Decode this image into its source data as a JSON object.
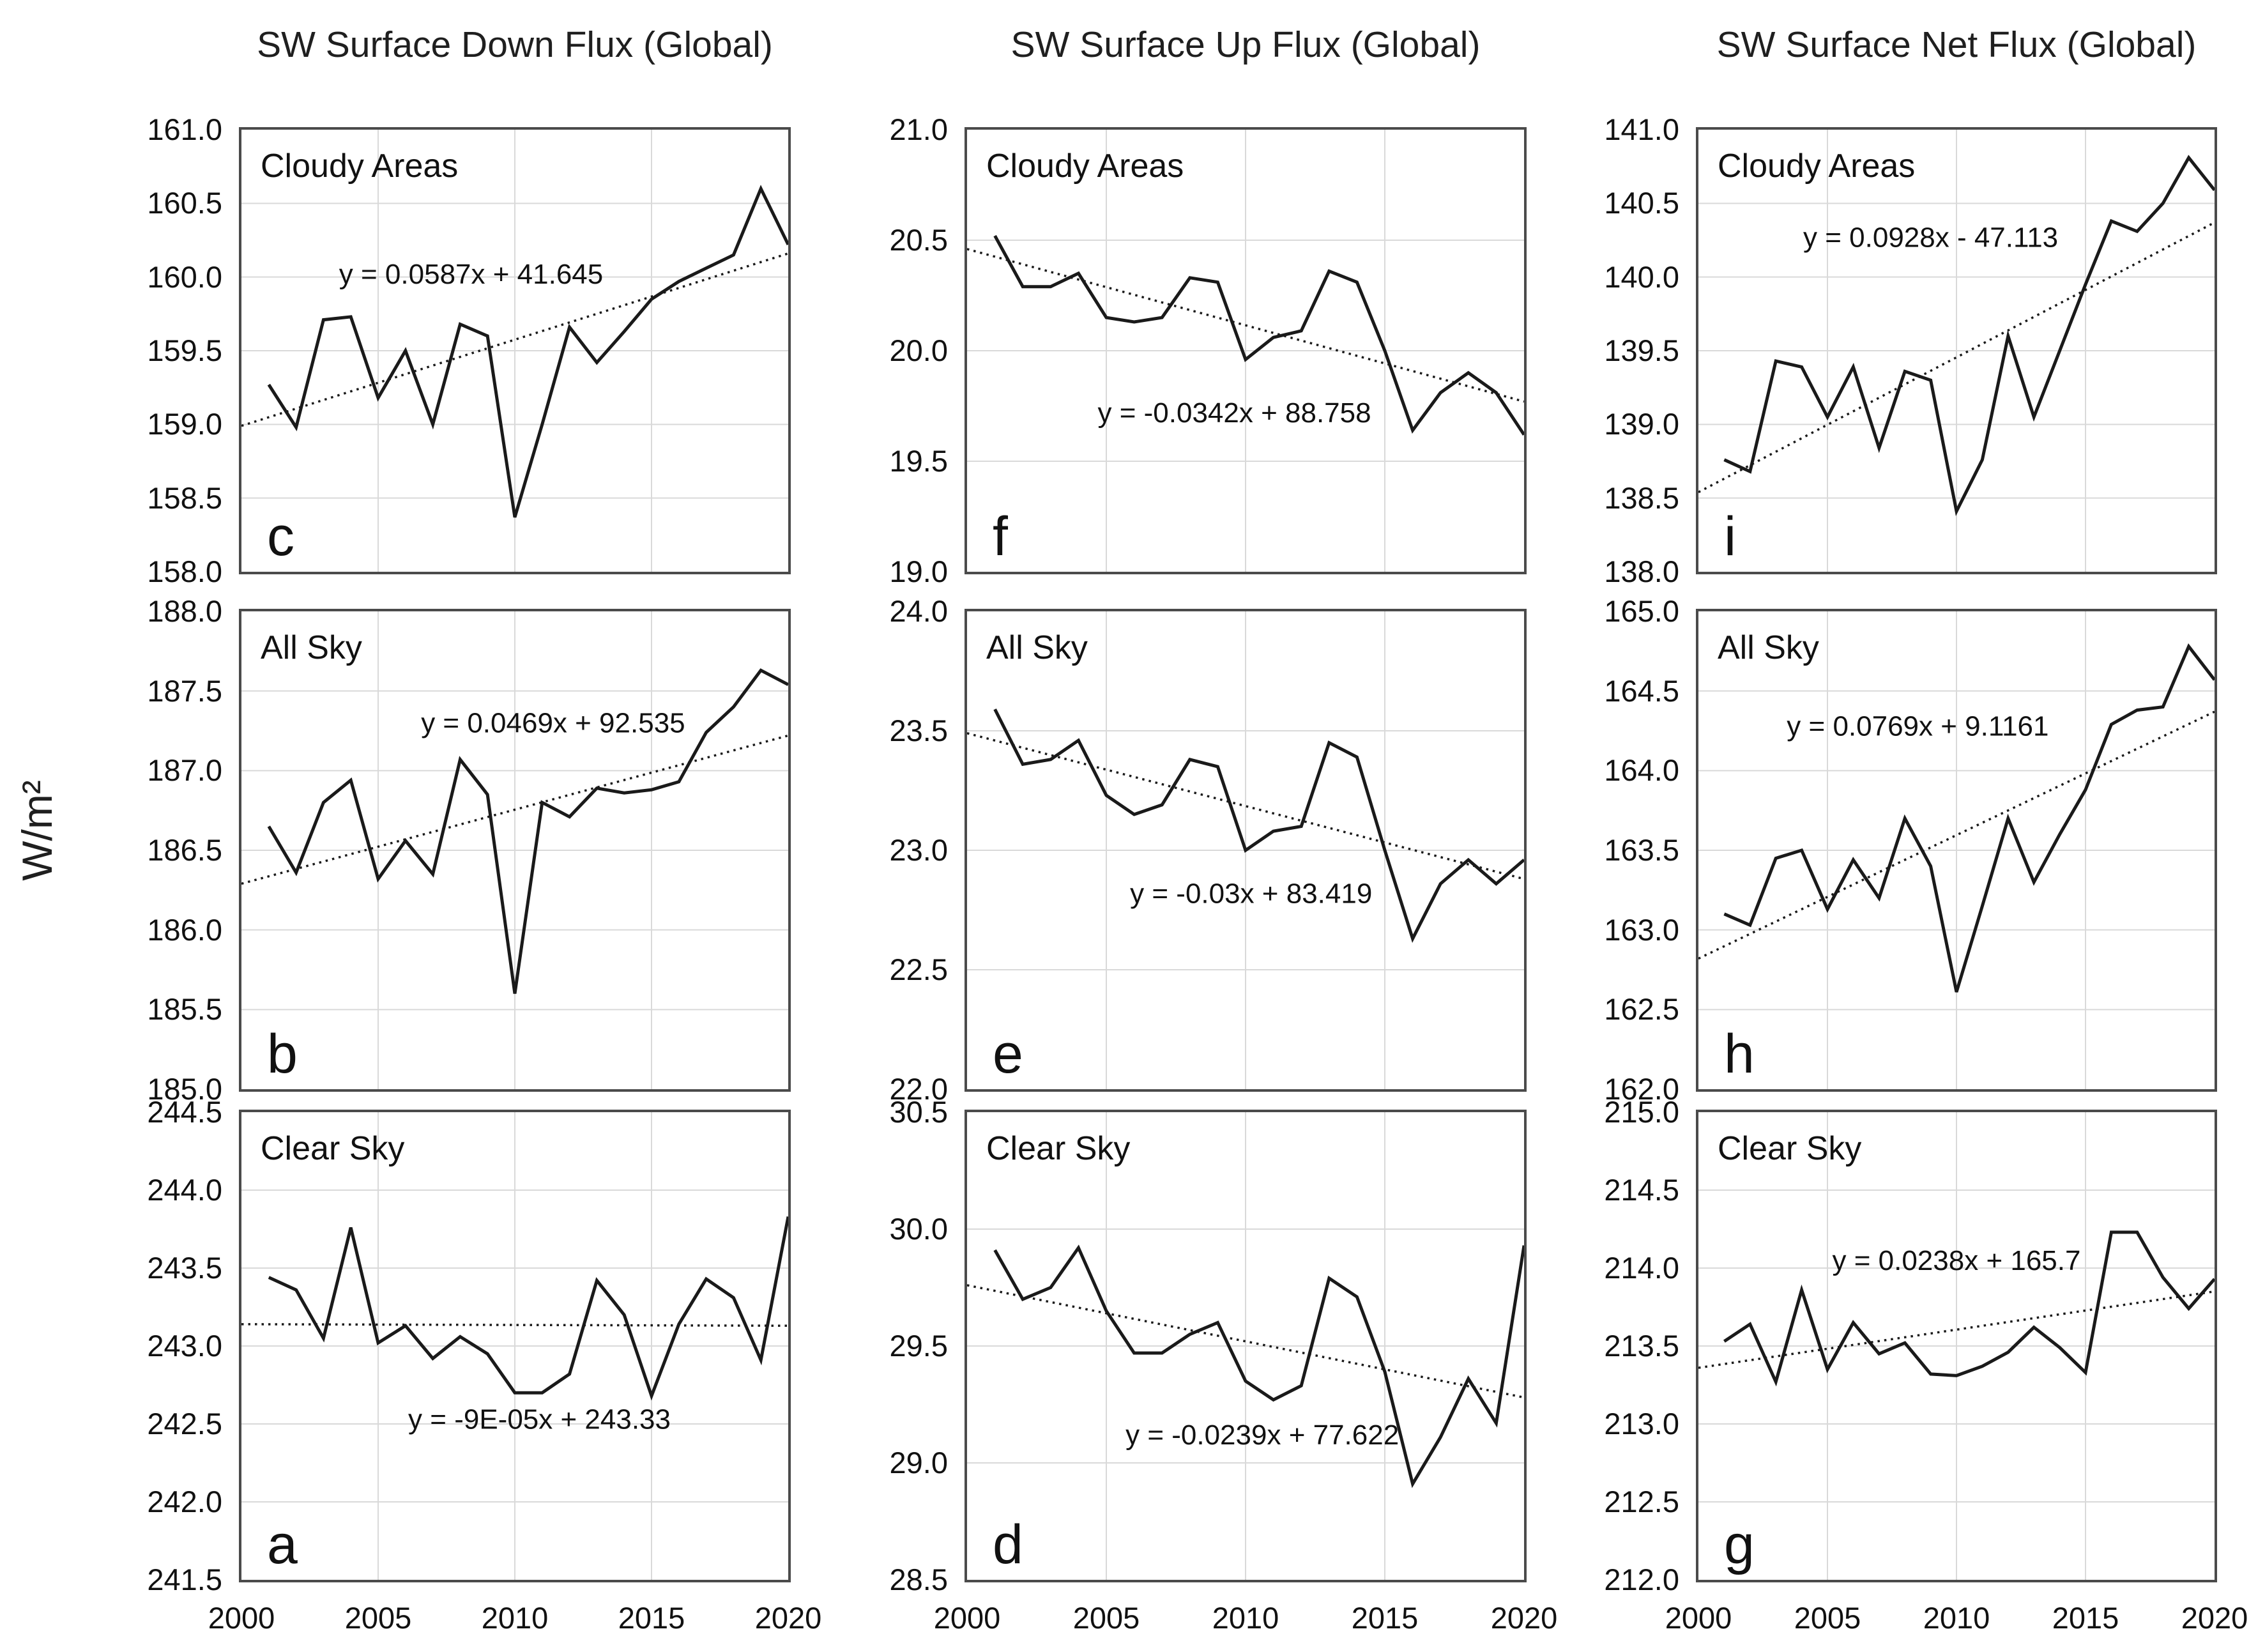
{
  "figure": {
    "ylabel": "W/m²",
    "column_titles": [
      "SW Surface Down Flux (Global)",
      "SW Surface Up Flux (Global)",
      "SW Surface Net Flux (Global)"
    ],
    "colors": {
      "background": "#ffffff",
      "series_line": "#1a1a1a",
      "trend_line": "#1a1a1a",
      "gridline": "#d9d9d9",
      "panel_border": "#4b4b4b",
      "text": "#111111"
    }
  },
  "x_axis": {
    "range": [
      2000,
      2020
    ],
    "tick_labels": [
      2000,
      2005,
      2010,
      2015,
      2020
    ],
    "gridline_years": [
      2005,
      2010,
      2015
    ]
  },
  "chart_data": [
    {
      "id": "c",
      "type": "line",
      "row": 0,
      "col": 0,
      "column_title": "SW Surface Down Flux (Global)",
      "sublabel": "Cloudy Areas",
      "corner_label": "c",
      "equation": "y = 0.0587x + 41.645",
      "equation_anchor": {
        "x_frac": 0.42,
        "y_value": 160.02
      },
      "ylim": [
        158.0,
        161.0
      ],
      "yticks": [
        158.0,
        158.5,
        159.0,
        159.5,
        160.0,
        160.5,
        161.0
      ],
      "x": [
        2001,
        2002,
        2003,
        2004,
        2005,
        2006,
        2007,
        2008,
        2009,
        2010,
        2011,
        2012,
        2013,
        2014,
        2015,
        2016,
        2017,
        2018,
        2019,
        2020
      ],
      "values": [
        159.27,
        158.98,
        159.71,
        159.73,
        159.18,
        159.5,
        159.0,
        159.68,
        159.6,
        158.37,
        159.0,
        159.66,
        159.42,
        159.63,
        159.85,
        159.97,
        160.06,
        160.15,
        160.6,
        160.22
      ],
      "trend_line": {
        "x": [
          2000,
          2020
        ],
        "y": [
          158.99,
          160.16
        ]
      }
    },
    {
      "id": "f",
      "type": "line",
      "row": 0,
      "col": 1,
      "column_title": "SW Surface Up Flux (Global)",
      "sublabel": "Cloudy Areas",
      "corner_label": "f",
      "equation": "y = -0.0342x + 88.758",
      "equation_anchor": {
        "x_frac": 0.48,
        "y_value": 19.72
      },
      "ylim": [
        19.0,
        21.0
      ],
      "yticks": [
        19.0,
        19.5,
        20.0,
        20.5,
        21.0
      ],
      "x": [
        2001,
        2002,
        2003,
        2004,
        2005,
        2006,
        2007,
        2008,
        2009,
        2010,
        2011,
        2012,
        2013,
        2014,
        2015,
        2016,
        2017,
        2018,
        2019,
        2020
      ],
      "values": [
        20.52,
        20.29,
        20.29,
        20.35,
        20.15,
        20.13,
        20.15,
        20.33,
        20.31,
        19.96,
        20.06,
        20.09,
        20.36,
        20.31,
        20.0,
        19.64,
        19.81,
        19.9,
        19.81,
        19.62
      ],
      "trend_line": {
        "x": [
          2000,
          2020
        ],
        "y": [
          20.46,
          19.77
        ]
      }
    },
    {
      "id": "i",
      "type": "line",
      "row": 0,
      "col": 2,
      "column_title": "SW Surface Net Flux (Global)",
      "sublabel": "Cloudy Areas",
      "corner_label": "i",
      "equation": "y = 0.0928x - 47.113",
      "equation_anchor": {
        "x_frac": 0.45,
        "y_value": 140.27
      },
      "ylim": [
        138.0,
        141.0
      ],
      "yticks": [
        138.0,
        138.5,
        139.0,
        139.5,
        140.0,
        140.5,
        141.0
      ],
      "x": [
        2001,
        2002,
        2003,
        2004,
        2005,
        2006,
        2007,
        2008,
        2009,
        2010,
        2011,
        2012,
        2013,
        2014,
        2015,
        2016,
        2017,
        2018,
        2019,
        2020
      ],
      "values": [
        138.76,
        138.68,
        139.43,
        139.39,
        139.05,
        139.39,
        138.84,
        139.36,
        139.3,
        138.41,
        138.76,
        139.6,
        139.05,
        139.5,
        139.95,
        140.38,
        140.31,
        140.5,
        140.81,
        140.59
      ],
      "trend_line": {
        "x": [
          2000,
          2020
        ],
        "y": [
          138.54,
          140.37
        ]
      }
    },
    {
      "id": "b",
      "type": "line",
      "row": 1,
      "col": 0,
      "column_title": "SW Surface Down Flux (Global)",
      "sublabel": "All Sky",
      "corner_label": "b",
      "equation": "y = 0.0469x + 92.535",
      "equation_anchor": {
        "x_frac": 0.57,
        "y_value": 187.3
      },
      "ylim": [
        185.0,
        188.0
      ],
      "yticks": [
        185.0,
        185.5,
        186.0,
        186.5,
        187.0,
        187.5,
        188.0
      ],
      "x": [
        2001,
        2002,
        2003,
        2004,
        2005,
        2006,
        2007,
        2008,
        2009,
        2010,
        2011,
        2012,
        2013,
        2014,
        2015,
        2016,
        2017,
        2018,
        2019,
        2020
      ],
      "values": [
        186.65,
        186.36,
        186.8,
        186.94,
        186.32,
        186.56,
        186.35,
        187.07,
        186.85,
        185.6,
        186.8,
        186.71,
        186.89,
        186.86,
        186.88,
        186.93,
        187.24,
        187.4,
        187.63,
        187.54
      ],
      "trend_line": {
        "x": [
          2000,
          2020
        ],
        "y": [
          186.29,
          187.22
        ]
      }
    },
    {
      "id": "e",
      "type": "line",
      "row": 1,
      "col": 1,
      "column_title": "SW Surface Up Flux (Global)",
      "sublabel": "All Sky",
      "corner_label": "e",
      "equation": "y = -0.03x + 83.419",
      "equation_anchor": {
        "x_frac": 0.51,
        "y_value": 22.82
      },
      "ylim": [
        22.0,
        24.0
      ],
      "yticks": [
        22.0,
        22.5,
        23.0,
        23.5,
        24.0
      ],
      "x": [
        2001,
        2002,
        2003,
        2004,
        2005,
        2006,
        2007,
        2008,
        2009,
        2010,
        2011,
        2012,
        2013,
        2014,
        2015,
        2016,
        2017,
        2018,
        2019,
        2020
      ],
      "values": [
        23.59,
        23.36,
        23.38,
        23.46,
        23.23,
        23.15,
        23.19,
        23.38,
        23.35,
        23.0,
        23.08,
        23.1,
        23.45,
        23.39,
        23.0,
        22.63,
        22.86,
        22.96,
        22.86,
        22.96
      ],
      "trend_line": {
        "x": [
          2000,
          2020
        ],
        "y": [
          23.49,
          22.88
        ]
      }
    },
    {
      "id": "h",
      "type": "line",
      "row": 1,
      "col": 2,
      "column_title": "SW Surface Net Flux (Global)",
      "sublabel": "All Sky",
      "corner_label": "h",
      "equation": "y = 0.0769x + 9.1161",
      "equation_anchor": {
        "x_frac": 0.425,
        "y_value": 164.28
      },
      "ylim": [
        162.0,
        165.0
      ],
      "yticks": [
        162.0,
        162.5,
        163.0,
        163.5,
        164.0,
        164.5,
        165.0
      ],
      "x": [
        2001,
        2002,
        2003,
        2004,
        2005,
        2006,
        2007,
        2008,
        2009,
        2010,
        2011,
        2012,
        2013,
        2014,
        2015,
        2016,
        2017,
        2018,
        2019,
        2020
      ],
      "values": [
        163.1,
        163.03,
        163.45,
        163.5,
        163.13,
        163.44,
        163.2,
        163.7,
        163.4,
        162.61,
        163.15,
        163.7,
        163.3,
        163.6,
        163.88,
        164.29,
        164.38,
        164.4,
        164.78,
        164.57
      ],
      "trend_line": {
        "x": [
          2000,
          2020
        ],
        "y": [
          162.82,
          164.37
        ]
      }
    },
    {
      "id": "a",
      "type": "line",
      "row": 2,
      "col": 0,
      "column_title": "SW Surface Down Flux (Global)",
      "sublabel": "Clear Sky",
      "corner_label": "a",
      "equation": "y = -9E-05x + 243.33",
      "equation_anchor": {
        "x_frac": 0.545,
        "y_value": 242.53
      },
      "ylim": [
        241.5,
        244.5
      ],
      "yticks": [
        241.5,
        242.0,
        242.5,
        243.0,
        243.5,
        244.0,
        244.5
      ],
      "x": [
        2001,
        2002,
        2003,
        2004,
        2005,
        2006,
        2007,
        2008,
        2009,
        2010,
        2011,
        2012,
        2013,
        2014,
        2015,
        2016,
        2017,
        2018,
        2019,
        2020
      ],
      "values": [
        243.44,
        243.36,
        243.05,
        243.76,
        243.02,
        243.13,
        242.92,
        243.06,
        242.95,
        242.7,
        242.7,
        242.82,
        243.42,
        243.2,
        242.68,
        243.14,
        243.43,
        243.31,
        242.91,
        243.83
      ],
      "trend_line": {
        "x": [
          2000,
          2020
        ],
        "y": [
          243.14,
          243.13
        ]
      }
    },
    {
      "id": "d",
      "type": "line",
      "row": 2,
      "col": 1,
      "column_title": "SW Surface Up Flux (Global)",
      "sublabel": "Clear Sky",
      "corner_label": "d",
      "equation": "y = -0.0239x + 77.622",
      "equation_anchor": {
        "x_frac": 0.53,
        "y_value": 29.12
      },
      "ylim": [
        28.5,
        30.5
      ],
      "yticks": [
        28.5,
        29.0,
        29.5,
        30.0,
        30.5
      ],
      "x": [
        2001,
        2002,
        2003,
        2004,
        2005,
        2006,
        2007,
        2008,
        2009,
        2010,
        2011,
        2012,
        2013,
        2014,
        2015,
        2016,
        2017,
        2018,
        2019,
        2020
      ],
      "values": [
        29.91,
        29.7,
        29.75,
        29.92,
        29.65,
        29.47,
        29.47,
        29.55,
        29.6,
        29.35,
        29.27,
        29.33,
        29.79,
        29.71,
        29.39,
        28.91,
        29.11,
        29.36,
        29.17,
        29.93
      ],
      "trend_line": {
        "x": [
          2000,
          2020
        ],
        "y": [
          29.76,
          29.28
        ]
      }
    },
    {
      "id": "g",
      "type": "line",
      "row": 2,
      "col": 2,
      "column_title": "SW Surface Net Flux (Global)",
      "sublabel": "Clear Sky",
      "corner_label": "g",
      "equation": "y = 0.0238x + 165.7",
      "equation_anchor": {
        "x_frac": 0.5,
        "y_value": 214.05
      },
      "ylim": [
        212.0,
        215.0
      ],
      "yticks": [
        212.0,
        212.5,
        213.0,
        213.5,
        214.0,
        214.5,
        215.0
      ],
      "x": [
        2001,
        2002,
        2003,
        2004,
        2005,
        2006,
        2007,
        2008,
        2009,
        2010,
        2011,
        2012,
        2013,
        2014,
        2015,
        2016,
        2017,
        2018,
        2019,
        2020
      ],
      "values": [
        213.53,
        213.64,
        213.27,
        213.86,
        213.35,
        213.65,
        213.45,
        213.52,
        213.32,
        213.31,
        213.37,
        213.46,
        213.62,
        213.49,
        213.33,
        214.23,
        214.23,
        213.94,
        213.74,
        213.93
      ],
      "trend_line": {
        "x": [
          2000,
          2020
        ],
        "y": [
          213.36,
          213.85
        ]
      }
    }
  ]
}
